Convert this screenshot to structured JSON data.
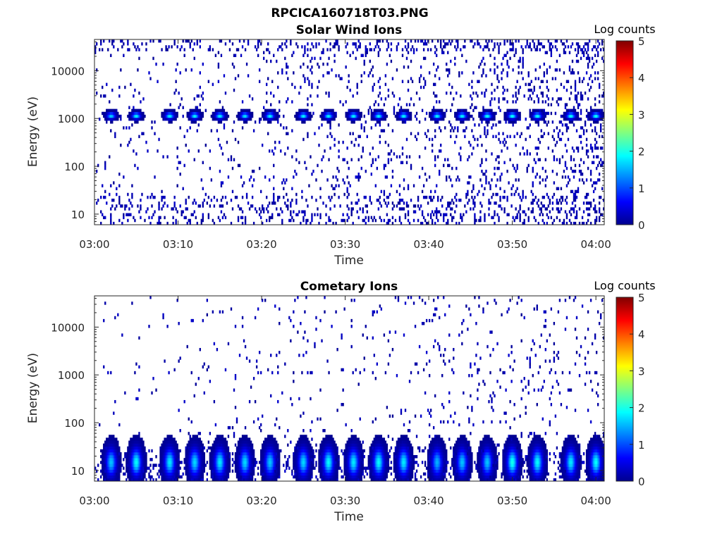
{
  "figure": {
    "filename": "RPCICA160718T03.PNG"
  },
  "colors": {
    "colormap": [
      "#00008f",
      "#0000ff",
      "#0080ff",
      "#00ffff",
      "#80ff80",
      "#ffff00",
      "#ff8000",
      "#ff0000",
      "#800000"
    ],
    "axes": "#262626"
  },
  "chart_data": [
    {
      "type": "heatmap",
      "title": "Solar Wind Ions",
      "xlabel": "Time",
      "ylabel": "Energy (eV)",
      "colorbar_label": "Log counts",
      "x_ticks": [
        "03:00",
        "03:10",
        "03:20",
        "03:30",
        "03:40",
        "03:50",
        "04:00"
      ],
      "x_range": [
        "03:00",
        "04:01"
      ],
      "y_scale": "log",
      "y_range": [
        6,
        45000
      ],
      "y_ticks": [
        10,
        100,
        1000,
        10000
      ],
      "y_tick_labels": [
        "10",
        "100",
        "1000",
        "10000"
      ],
      "c_range": [
        0,
        5
      ],
      "c_ticks": [
        "0",
        "1",
        "2",
        "3",
        "4",
        "5"
      ],
      "description_of_values": "sparse counts mostly 0-1 log counts; periodic peaks ~2 log counts near 1100 eV every ~3.2 min",
      "peaks": [
        {
          "time": "03:02",
          "energy_eV": 1150,
          "log_counts": 1.7
        },
        {
          "time": "03:05",
          "energy_eV": 1150,
          "log_counts": 1.9
        },
        {
          "time": "03:09",
          "energy_eV": 1150,
          "log_counts": 1.9
        },
        {
          "time": "03:12",
          "energy_eV": 1150,
          "log_counts": 1.9
        },
        {
          "time": "03:15",
          "energy_eV": 1150,
          "log_counts": 1.9
        },
        {
          "time": "03:18",
          "energy_eV": 1150,
          "log_counts": 1.8
        },
        {
          "time": "03:21",
          "energy_eV": 1150,
          "log_counts": 1.9
        },
        {
          "time": "03:25",
          "energy_eV": 1150,
          "log_counts": 1.9
        },
        {
          "time": "03:28",
          "energy_eV": 1150,
          "log_counts": 1.9
        },
        {
          "time": "03:31",
          "energy_eV": 1150,
          "log_counts": 1.9
        },
        {
          "time": "03:34",
          "energy_eV": 1150,
          "log_counts": 1.9
        },
        {
          "time": "03:37",
          "energy_eV": 1150,
          "log_counts": 1.9
        },
        {
          "time": "03:41",
          "energy_eV": 1150,
          "log_counts": 1.9
        },
        {
          "time": "03:44",
          "energy_eV": 1150,
          "log_counts": 1.9
        },
        {
          "time": "03:47",
          "energy_eV": 1150,
          "log_counts": 2.0
        },
        {
          "time": "03:50",
          "energy_eV": 1150,
          "log_counts": 2.0
        },
        {
          "time": "03:53",
          "energy_eV": 1150,
          "log_counts": 2.0
        },
        {
          "time": "03:57",
          "energy_eV": 1150,
          "log_counts": 2.0
        },
        {
          "time": "04:00",
          "energy_eV": 1150,
          "log_counts": 2.0
        }
      ]
    },
    {
      "type": "heatmap",
      "title": "Cometary Ions",
      "xlabel": "Time",
      "ylabel": "Energy (eV)",
      "colorbar_label": "Log counts",
      "x_ticks": [
        "03:00",
        "03:10",
        "03:20",
        "03:30",
        "03:40",
        "03:50",
        "04:00"
      ],
      "x_range": [
        "03:00",
        "04:01"
      ],
      "y_scale": "log",
      "y_range": [
        6,
        45000
      ],
      "y_ticks": [
        10,
        100,
        1000,
        10000
      ],
      "y_tick_labels": [
        "10",
        "100",
        "1000",
        "10000"
      ],
      "c_range": [
        0,
        5
      ],
      "c_ticks": [
        "0",
        "1",
        "2",
        "3",
        "4",
        "5"
      ],
      "description_of_values": "bursts 10-35 eV up to ~2 log counts every ~3.2 min; weak 1100 eV band; sparse noise",
      "peaks": [
        {
          "time": "03:02",
          "energy_eV": 15,
          "log_counts": 1.6
        },
        {
          "time": "03:05",
          "energy_eV": 15,
          "log_counts": 1.9
        },
        {
          "time": "03:09",
          "energy_eV": 15,
          "log_counts": 1.8
        },
        {
          "time": "03:12",
          "energy_eV": 15,
          "log_counts": 1.7
        },
        {
          "time": "03:15",
          "energy_eV": 15,
          "log_counts": 1.8
        },
        {
          "time": "03:18",
          "energy_eV": 15,
          "log_counts": 1.7
        },
        {
          "time": "03:21",
          "energy_eV": 15,
          "log_counts": 1.6
        },
        {
          "time": "03:25",
          "energy_eV": 15,
          "log_counts": 1.7
        },
        {
          "time": "03:28",
          "energy_eV": 15,
          "log_counts": 1.9
        },
        {
          "time": "03:31",
          "energy_eV": 15,
          "log_counts": 1.8
        },
        {
          "time": "03:34",
          "energy_eV": 15,
          "log_counts": 1.9
        },
        {
          "time": "03:37",
          "energy_eV": 15,
          "log_counts": 1.8
        },
        {
          "time": "03:41",
          "energy_eV": 15,
          "log_counts": 1.5
        },
        {
          "time": "03:44",
          "energy_eV": 15,
          "log_counts": 1.6
        },
        {
          "time": "03:47",
          "energy_eV": 15,
          "log_counts": 1.6
        },
        {
          "time": "03:50",
          "energy_eV": 15,
          "log_counts": 2.0
        },
        {
          "time": "03:53",
          "energy_eV": 15,
          "log_counts": 1.9
        },
        {
          "time": "03:57",
          "energy_eV": 15,
          "log_counts": 1.8
        },
        {
          "time": "04:00",
          "energy_eV": 15,
          "log_counts": 1.9
        }
      ]
    }
  ]
}
